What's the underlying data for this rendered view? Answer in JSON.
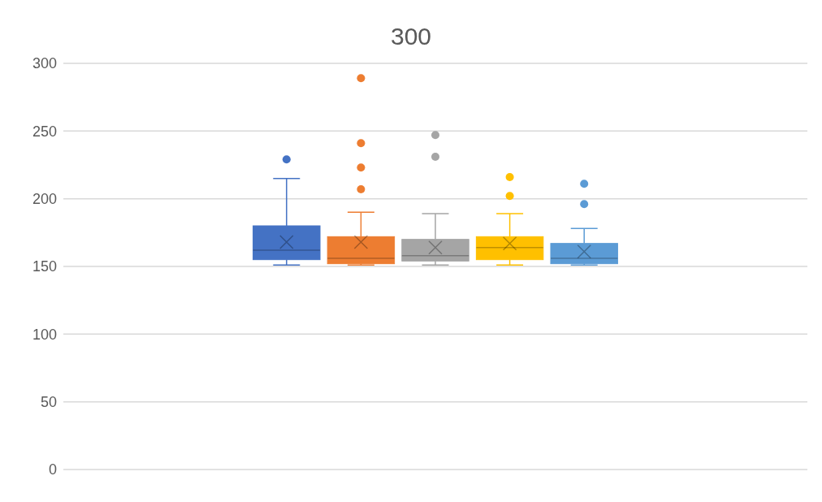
{
  "chart_data": {
    "type": "box",
    "title": "300",
    "categories": [
      null
    ],
    "series": [
      {
        "color": "#4472c4",
        "boxes": [
          {
            "low": 151,
            "q1": 155,
            "median": 162,
            "q3": 180,
            "high": 215,
            "mean": 168,
            "outliers": [
              229
            ]
          }
        ]
      },
      {
        "color": "#ed7d31",
        "boxes": [
          {
            "low": 151,
            "q1": 152,
            "median": 156,
            "q3": 172,
            "high": 190,
            "mean": 168,
            "outliers": [
              289,
              241,
              223,
              207
            ]
          }
        ]
      },
      {
        "color": "#a5a5a5",
        "boxes": [
          {
            "low": 151,
            "q1": 154,
            "median": 158,
            "q3": 170,
            "high": 189,
            "mean": 164,
            "outliers": [
              247,
              231
            ]
          }
        ]
      },
      {
        "color": "#ffc000",
        "boxes": [
          {
            "low": 151,
            "q1": 155,
            "median": 164,
            "q3": 172,
            "high": 189,
            "mean": 167,
            "outliers": [
              216,
              202
            ]
          }
        ]
      },
      {
        "color": "#5b9bd5",
        "boxes": [
          {
            "low": 151,
            "q1": 152,
            "median": 156,
            "q3": 167,
            "high": 178,
            "mean": 161,
            "outliers": [
              211,
              196
            ]
          }
        ]
      }
    ],
    "ylim": [
      0,
      300
    ],
    "yticks": [
      0,
      50,
      100,
      150,
      200,
      250,
      300
    ],
    "grid": "y",
    "tick_labels": "y"
  }
}
